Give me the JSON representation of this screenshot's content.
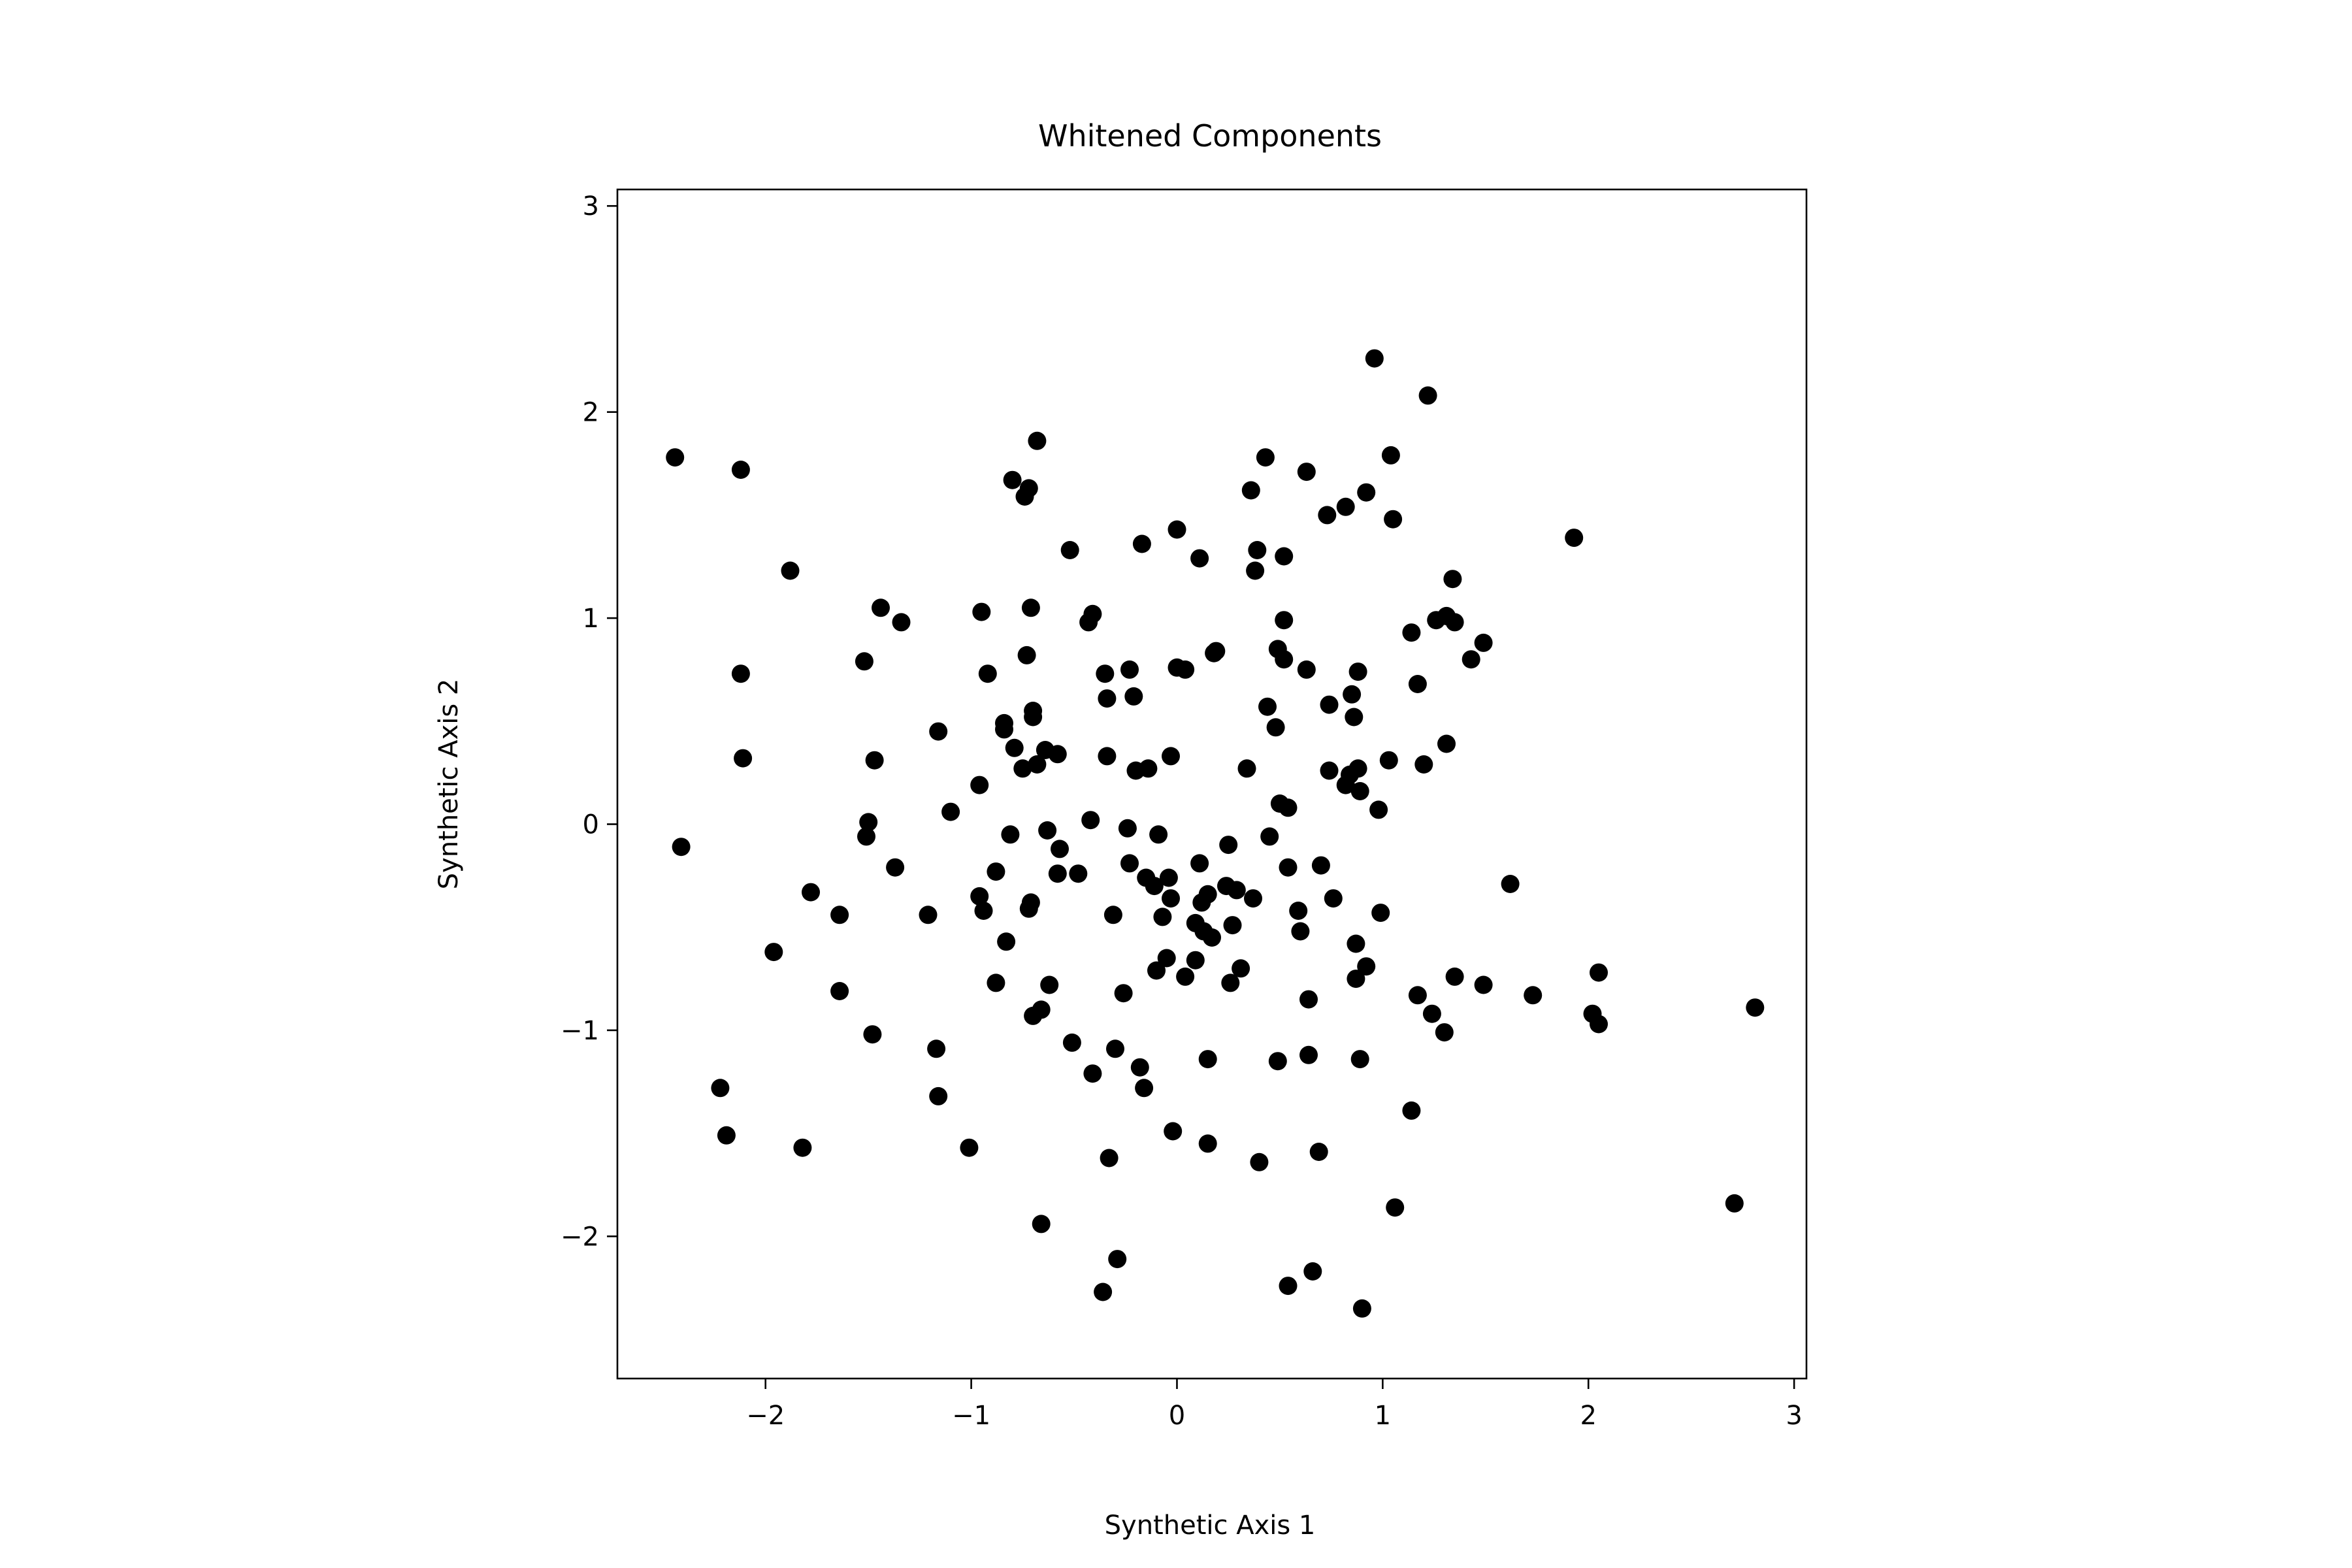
{
  "chart_data": {
    "type": "scatter",
    "title": "Whitened Components",
    "xlabel": "Synthetic Axis 1",
    "ylabel": "Synthetic Axis 2",
    "xlim": [
      -2.72,
      3.06
    ],
    "ylim": [
      -2.69,
      3.08
    ],
    "xticks": [
      -2,
      -1,
      0,
      1,
      2,
      3
    ],
    "yticks": [
      -2,
      -1,
      0,
      1,
      2,
      3
    ],
    "xtick_labels": [
      "−2",
      "−1",
      "0",
      "1",
      "2",
      "3"
    ],
    "ytick_labels": [
      "−2",
      "−1",
      "0",
      "1",
      "2",
      "3"
    ],
    "grid": false,
    "marker_color": "#000000",
    "points": [
      [
        -2.44,
        1.78
      ],
      [
        -2.12,
        1.72
      ],
      [
        -1.88,
        1.23
      ],
      [
        -2.12,
        0.73
      ],
      [
        -2.11,
        0.32
      ],
      [
        -2.41,
        -0.11
      ],
      [
        -1.96,
        -0.62
      ],
      [
        -1.78,
        -0.33
      ],
      [
        -1.64,
        -0.44
      ],
      [
        -1.64,
        -0.81
      ],
      [
        -1.48,
        -1.02
      ],
      [
        -2.22,
        -1.28
      ],
      [
        -2.19,
        -1.51
      ],
      [
        -1.82,
        -1.57
      ],
      [
        -1.44,
        1.05
      ],
      [
        -1.34,
        0.98
      ],
      [
        -1.52,
        0.79
      ],
      [
        -1.47,
        0.31
      ],
      [
        -1.5,
        0.01
      ],
      [
        -1.51,
        -0.06
      ],
      [
        -1.37,
        -0.21
      ],
      [
        -1.21,
        -0.44
      ],
      [
        -1.17,
        -1.09
      ],
      [
        -1.16,
        -1.32
      ],
      [
        -1.01,
        -1.57
      ],
      [
        -1.16,
        0.45
      ],
      [
        -1.1,
        0.06
      ],
      [
        -0.96,
        0.19
      ],
      [
        -0.96,
        -0.35
      ],
      [
        -0.94,
        -0.42
      ],
      [
        -0.88,
        -0.23
      ],
      [
        -0.88,
        -0.77
      ],
      [
        -0.83,
        -0.57
      ],
      [
        -0.8,
        1.67
      ],
      [
        -0.74,
        1.59
      ],
      [
        -0.72,
        1.63
      ],
      [
        -0.68,
        1.86
      ],
      [
        -0.71,
        1.05
      ],
      [
        -0.95,
        1.03
      ],
      [
        -0.92,
        0.73
      ],
      [
        -0.84,
        0.49
      ],
      [
        -0.84,
        0.46
      ],
      [
        -0.79,
        0.37
      ],
      [
        -0.73,
        0.82
      ],
      [
        -0.7,
        0.55
      ],
      [
        -0.7,
        0.52
      ],
      [
        -0.75,
        0.27
      ],
      [
        -0.68,
        0.29
      ],
      [
        -0.64,
        0.36
      ],
      [
        -0.81,
        -0.05
      ],
      [
        -0.71,
        -0.38
      ],
      [
        -0.72,
        -0.41
      ],
      [
        -0.63,
        -0.03
      ],
      [
        -0.57,
        -0.12
      ],
      [
        -0.58,
        0.34
      ],
      [
        -0.52,
        1.33
      ],
      [
        -0.43,
        0.98
      ],
      [
        -0.41,
        1.02
      ],
      [
        -0.58,
        -0.24
      ],
      [
        -0.48,
        -0.24
      ],
      [
        -0.7,
        -0.93
      ],
      [
        -0.66,
        -0.9
      ],
      [
        -0.62,
        -0.78
      ],
      [
        -0.51,
        -1.06
      ],
      [
        -0.41,
        -1.21
      ],
      [
        -0.66,
        -1.94
      ],
      [
        -0.36,
        -2.27
      ],
      [
        -0.33,
        -1.62
      ],
      [
        -0.29,
        -2.11
      ],
      [
        -0.3,
        -1.09
      ],
      [
        -0.31,
        -0.44
      ],
      [
        -0.26,
        -0.82
      ],
      [
        -0.18,
        -1.18
      ],
      [
        -0.16,
        -1.28
      ],
      [
        -0.35,
        0.73
      ],
      [
        -0.34,
        0.61
      ],
      [
        -0.34,
        0.33
      ],
      [
        -0.23,
        0.75
      ],
      [
        -0.21,
        0.62
      ],
      [
        -0.2,
        0.26
      ],
      [
        -0.14,
        0.27
      ],
      [
        -0.42,
        0.02
      ],
      [
        -0.24,
        -0.02
      ],
      [
        -0.23,
        -0.19
      ],
      [
        -0.17,
        1.36
      ],
      [
        -0.15,
        -0.26
      ],
      [
        -0.09,
        -0.05
      ],
      [
        -0.11,
        -0.3
      ],
      [
        -0.07,
        -0.45
      ],
      [
        -0.04,
        -0.26
      ],
      [
        -0.03,
        -0.36
      ],
      [
        -0.05,
        -0.65
      ],
      [
        -0.1,
        -0.71
      ],
      [
        0.0,
        1.43
      ],
      [
        0.11,
        1.29
      ],
      [
        0.0,
        0.76
      ],
      [
        0.04,
        0.75
      ],
      [
        -0.03,
        0.33
      ],
      [
        -0.02,
        -1.49
      ],
      [
        0.04,
        -0.74
      ],
      [
        0.09,
        -0.48
      ],
      [
        0.09,
        -0.66
      ],
      [
        0.12,
        -0.38
      ],
      [
        0.13,
        -0.52
      ],
      [
        0.11,
        -0.19
      ],
      [
        0.15,
        -0.34
      ],
      [
        0.17,
        -0.55
      ],
      [
        0.15,
        -1.14
      ],
      [
        0.15,
        -1.55
      ],
      [
        0.18,
        0.83
      ],
      [
        0.19,
        0.84
      ],
      [
        0.25,
        -0.1
      ],
      [
        0.24,
        -0.3
      ],
      [
        0.26,
        -0.77
      ],
      [
        0.27,
        -0.49
      ],
      [
        0.29,
        -0.32
      ],
      [
        0.31,
        -0.7
      ],
      [
        0.34,
        0.27
      ],
      [
        0.36,
        1.62
      ],
      [
        0.38,
        1.23
      ],
      [
        0.39,
        1.33
      ],
      [
        0.37,
        -0.36
      ],
      [
        0.4,
        -1.64
      ],
      [
        0.43,
        1.78
      ],
      [
        0.44,
        0.57
      ],
      [
        0.45,
        -0.06
      ],
      [
        0.49,
        0.85
      ],
      [
        0.48,
        0.47
      ],
      [
        0.5,
        0.1
      ],
      [
        0.52,
        0.8
      ],
      [
        0.52,
        0.99
      ],
      [
        0.52,
        1.3
      ],
      [
        0.54,
        0.08
      ],
      [
        0.54,
        -0.21
      ],
      [
        0.49,
        -1.15
      ],
      [
        0.54,
        -2.24
      ],
      [
        0.59,
        -0.42
      ],
      [
        0.6,
        -0.52
      ],
      [
        0.63,
        1.71
      ],
      [
        0.63,
        0.75
      ],
      [
        0.64,
        -0.85
      ],
      [
        0.64,
        -1.12
      ],
      [
        0.66,
        -2.17
      ],
      [
        0.7,
        -0.2
      ],
      [
        0.69,
        -1.59
      ],
      [
        0.73,
        1.5
      ],
      [
        0.74,
        0.58
      ],
      [
        0.74,
        0.26
      ],
      [
        0.76,
        -0.36
      ],
      [
        0.82,
        0.19
      ],
      [
        0.82,
        1.54
      ],
      [
        0.84,
        0.24
      ],
      [
        0.85,
        0.63
      ],
      [
        0.86,
        0.52
      ],
      [
        0.87,
        -0.58
      ],
      [
        0.87,
        -0.75
      ],
      [
        0.88,
        0.27
      ],
      [
        0.88,
        0.74
      ],
      [
        0.89,
        0.16
      ],
      [
        0.89,
        -1.14
      ],
      [
        0.9,
        -2.35
      ],
      [
        0.92,
        1.61
      ],
      [
        0.92,
        -0.69
      ],
      [
        0.96,
        2.26
      ],
      [
        0.98,
        0.07
      ],
      [
        0.99,
        -0.43
      ],
      [
        1.03,
        0.31
      ],
      [
        1.04,
        1.79
      ],
      [
        1.05,
        1.48
      ],
      [
        1.06,
        -1.86
      ],
      [
        1.14,
        0.93
      ],
      [
        1.17,
        0.68
      ],
      [
        1.14,
        -1.39
      ],
      [
        1.17,
        -0.83
      ],
      [
        1.22,
        2.08
      ],
      [
        1.2,
        0.29
      ],
      [
        1.24,
        -0.92
      ],
      [
        1.26,
        0.99
      ],
      [
        1.31,
        1.01
      ],
      [
        1.31,
        0.39
      ],
      [
        1.3,
        -1.01
      ],
      [
        1.34,
        1.19
      ],
      [
        1.35,
        0.98
      ],
      [
        1.35,
        -0.74
      ],
      [
        1.43,
        0.8
      ],
      [
        1.49,
        0.88
      ],
      [
        1.49,
        -0.78
      ],
      [
        1.62,
        -0.29
      ],
      [
        1.73,
        -0.83
      ],
      [
        1.93,
        1.39
      ],
      [
        2.02,
        -0.92
      ],
      [
        2.05,
        -0.72
      ],
      [
        2.05,
        -0.97
      ],
      [
        2.71,
        -1.84
      ],
      [
        2.81,
        -0.89
      ]
    ]
  }
}
